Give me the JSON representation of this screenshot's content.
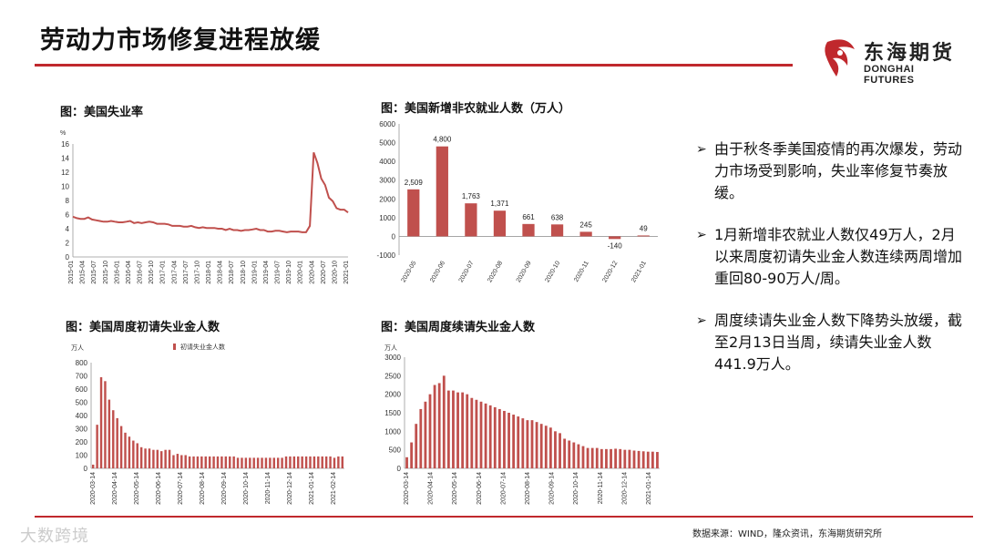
{
  "slide": {
    "title": "劳动力市场修复进程放缓"
  },
  "logo": {
    "cn": "东海期货",
    "en": "DONGHAI FUTURES"
  },
  "bullets": [
    "由于秋冬季美国疫情的再次爆发，劳动力市场受到影响，失业率修复节奏放缓。",
    "1月新增非农就业人数仅49万人，2月以来周度初请失业金人数连续两周增加重回80-90万人/周。",
    "周度续请失业金人数下降势头放缓，截至2月13日当周，续请失业金人数441.9万人。"
  ],
  "bullet_glyph": "➢",
  "footer": {
    "source": "数据来源：WIND，隆众资讯，东海期货研究所",
    "watermark": "大数跨境"
  },
  "colors": {
    "accent": "#c0282d",
    "series": "#c0504d"
  },
  "chart_data": [
    {
      "type": "line",
      "title": "图：美国失业率",
      "unit": "%",
      "ylim": [
        0,
        16
      ],
      "yticks": [
        0,
        2,
        4,
        6,
        8,
        10,
        12,
        14,
        16
      ],
      "xtick_labels": [
        "2015-01",
        "2015-04",
        "2015-07",
        "2015-10",
        "2016-01",
        "2016-04",
        "2016-07",
        "2016-10",
        "2017-01",
        "2017-04",
        "2017-07",
        "2017-10",
        "2018-01",
        "2018-04",
        "2018-07",
        "2018-10",
        "2019-01",
        "2019-04",
        "2019-07",
        "2019-10",
        "2020-01",
        "2020-04",
        "2020-07",
        "2020-10",
        "2021-01"
      ],
      "start": "2015-01",
      "values": [
        5.7,
        5.5,
        5.4,
        5.4,
        5.6,
        5.3,
        5.2,
        5.1,
        5.0,
        5.0,
        5.1,
        5.0,
        4.9,
        4.9,
        5.0,
        5.1,
        4.8,
        4.9,
        4.8,
        4.9,
        5.0,
        4.9,
        4.7,
        4.7,
        4.7,
        4.6,
        4.4,
        4.4,
        4.4,
        4.3,
        4.3,
        4.4,
        4.2,
        4.1,
        4.2,
        4.1,
        4.1,
        4.1,
        4.0,
        4.0,
        3.8,
        4.0,
        3.8,
        3.8,
        3.7,
        3.8,
        3.8,
        3.9,
        4.0,
        3.8,
        3.8,
        3.6,
        3.6,
        3.7,
        3.7,
        3.6,
        3.5,
        3.6,
        3.6,
        3.6,
        3.5,
        3.5,
        4.4,
        14.8,
        13.3,
        11.1,
        10.2,
        8.4,
        7.9,
        6.9,
        6.7,
        6.7,
        6.3
      ]
    },
    {
      "type": "bar",
      "title": "图：美国新增非农就业人数（万人）",
      "categories": [
        "2020-05",
        "2020-06",
        "2020-07",
        "2020-08",
        "2020-09",
        "2020-10",
        "2020-11",
        "2020-12",
        "2021-01"
      ],
      "values": [
        2509,
        4800,
        1763,
        1371,
        661,
        638,
        245,
        -140,
        49
      ],
      "data_labels": [
        "2,509",
        "4,800",
        "1,763",
        "1,371",
        "661",
        "638",
        "245",
        "-140",
        "49"
      ],
      "ylim": [
        -1000,
        6000
      ],
      "yticks": [
        -1000,
        0,
        1000,
        2000,
        3000,
        4000,
        5000,
        6000
      ]
    },
    {
      "type": "bar",
      "title": "图：美国周度初请失业金人数",
      "unit": "万人",
      "legend": "初请失业金人数",
      "ylim": [
        0,
        800
      ],
      "yticks": [
        0,
        100,
        200,
        300,
        400,
        500,
        600,
        700,
        800
      ],
      "xtick_labels": [
        "2020-03-14",
        "2020-04-14",
        "2020-05-14",
        "2020-06-14",
        "2020-07-14",
        "2020-08-14",
        "2020-09-14",
        "2020-10-14",
        "2020-11-14",
        "2020-12-14",
        "2021-01-14",
        "2021-02-14"
      ],
      "values": [
        28,
        330,
        690,
        660,
        520,
        440,
        380,
        320,
        270,
        240,
        210,
        190,
        160,
        150,
        150,
        140,
        140,
        130,
        140,
        140,
        100,
        110,
        100,
        100,
        90,
        90,
        90,
        90,
        90,
        90,
        90,
        90,
        90,
        90,
        90,
        90,
        80,
        80,
        80,
        80,
        80,
        80,
        80,
        80,
        80,
        80,
        80,
        80,
        90,
        90,
        90,
        90,
        90,
        90,
        90,
        90,
        90,
        90,
        90,
        90,
        80,
        90,
        90
      ]
    },
    {
      "type": "bar",
      "title": "图：美国周度续请失业金人数",
      "unit": "万人",
      "ylim": [
        0,
        3000
      ],
      "yticks": [
        0,
        500,
        1000,
        1500,
        2000,
        2500,
        3000
      ],
      "xtick_labels": [
        "2020-03-14",
        "2020-04-14",
        "2020-05-14",
        "2020-06-14",
        "2020-07-14",
        "2020-08-14",
        "2020-09-14",
        "2020-10-14",
        "2020-11-14",
        "2020-12-14",
        "2021-01-14"
      ],
      "values": [
        300,
        700,
        1200,
        1600,
        1800,
        2000,
        2250,
        2300,
        2500,
        2100,
        2100,
        2050,
        2050,
        2000,
        1900,
        1850,
        1800,
        1750,
        1700,
        1650,
        1600,
        1550,
        1500,
        1450,
        1400,
        1350,
        1300,
        1300,
        1250,
        1200,
        1150,
        1100,
        1000,
        950,
        800,
        750,
        700,
        650,
        600,
        550,
        550,
        550,
        520,
        520,
        520,
        530,
        520,
        500,
        500,
        480,
        470,
        460,
        450,
        450,
        441.9
      ]
    }
  ]
}
